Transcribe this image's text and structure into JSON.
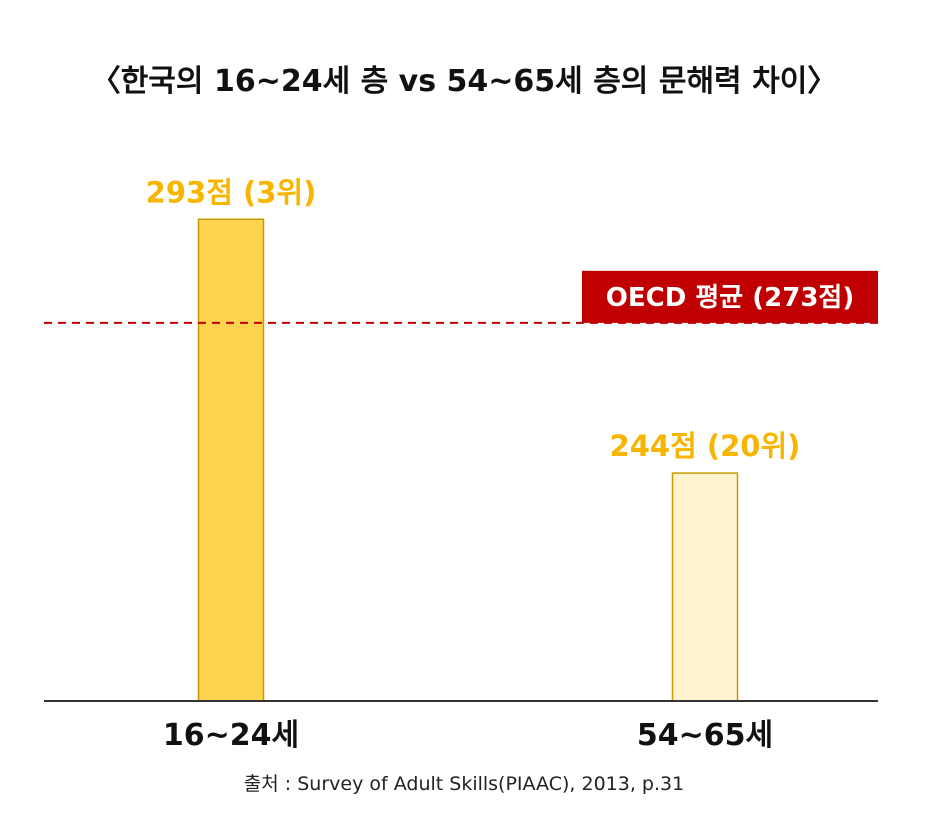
{
  "chart_data": {
    "type": "bar",
    "title": "〈한국의 16~24세 층 vs 54~65세 층의 문해력 차이〉",
    "categories": [
      "16~24세",
      "54~65세"
    ],
    "values": [
      293,
      244
    ],
    "value_labels": [
      "293점 (3위)",
      "244점 (20위)"
    ],
    "bar_colors": [
      "#fdd34f",
      "#fff4cf"
    ],
    "bar_stroke": "#c89a00",
    "value_label_color": "#f7b500",
    "reference_line": {
      "value": 273,
      "label": "OECD 평균 (273점)",
      "color": "#c00000",
      "style": "dashed"
    },
    "ylim": [
      200,
      300
    ],
    "grid": false,
    "xlabel": "",
    "ylabel": "",
    "source": "출처 : Survey of Adult Skills(PIAAC), 2013, p.31"
  }
}
